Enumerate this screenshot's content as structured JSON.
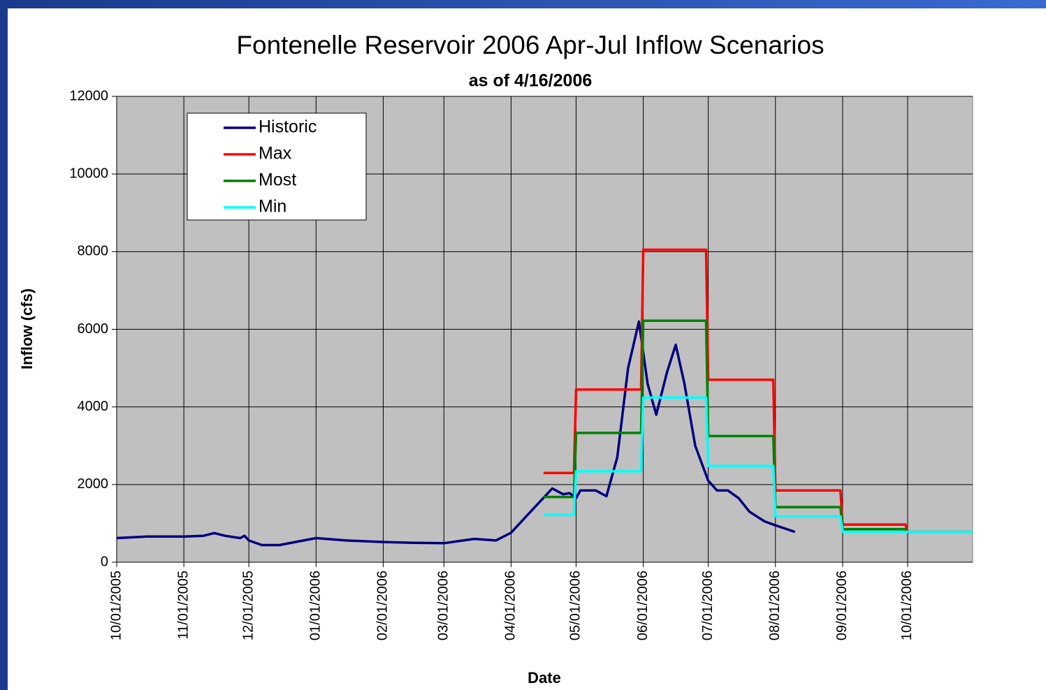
{
  "chart_data": {
    "type": "line",
    "title": "Fontenelle Reservoir 2006 Apr-Jul Inflow Scenarios",
    "subtitle": "as of 4/16/2006",
    "x_label": "Date",
    "y_label": "Inflow (cfs)",
    "xlim": [
      "10/01/2005",
      "10/31/2006"
    ],
    "xticks": [
      "10/01/2005",
      "11/01/2005",
      "12/01/2005",
      "01/01/2006",
      "02/01/2006",
      "03/01/2006",
      "04/01/2006",
      "05/01/2006",
      "06/01/2006",
      "07/01/2006",
      "08/01/2006",
      "09/01/2006",
      "10/01/2006"
    ],
    "ylim": [
      0,
      12000
    ],
    "yticks": [
      0,
      2000,
      4000,
      6000,
      8000,
      10000,
      12000
    ],
    "grid": true,
    "legend": "upper left",
    "series": [
      {
        "name": "Historic",
        "color": "#000080",
        "x": [
          "10/01/2005",
          "10/15/2005",
          "11/01/2005",
          "11/10/2005",
          "11/15/2005",
          "11/20/2005",
          "11/27/2005",
          "11/29/2005",
          "12/01/2005",
          "12/07/2005",
          "12/15/2005",
          "01/01/2006",
          "01/15/2006",
          "02/01/2006",
          "02/15/2006",
          "03/01/2006",
          "03/15/2006",
          "03/25/2006",
          "04/01/2006",
          "04/10/2006",
          "04/20/2006",
          "04/25/2006",
          "04/28/2006",
          "05/01/2006",
          "05/03/2006",
          "05/10/2006",
          "05/15/2006",
          "05/20/2006",
          "05/25/2006",
          "05/30/2006",
          "06/03/2006",
          "06/07/2006",
          "06/12/2006",
          "06/16/2006",
          "06/20/2006",
          "06/25/2006",
          "07/01/2006",
          "07/05/2006",
          "07/10/2006",
          "07/15/2006",
          "07/20/2006",
          "07/27/2006",
          "08/01/2006",
          "08/10/2006"
        ],
        "values": [
          620,
          660,
          660,
          680,
          750,
          680,
          620,
          680,
          560,
          440,
          440,
          620,
          560,
          520,
          500,
          490,
          600,
          560,
          760,
          1300,
          1900,
          1750,
          1780,
          1650,
          1850,
          1850,
          1700,
          2700,
          5000,
          6200,
          4600,
          3800,
          4900,
          5600,
          4600,
          3000,
          2100,
          1850,
          1850,
          1650,
          1300,
          1050,
          950,
          780
        ]
      },
      {
        "name": "Max",
        "color": "#ff0000",
        "x": [
          "04/16/2006",
          "04/30/2006",
          "05/01/2006",
          "05/31/2006",
          "06/01/2006",
          "06/30/2006",
          "07/01/2006",
          "07/31/2006",
          "08/01/2006",
          "08/31/2006",
          "09/01/2006",
          "09/30/2006",
          "10/01/2006",
          "10/31/2006"
        ],
        "values": [
          2300,
          2300,
          4450,
          4450,
          8050,
          8050,
          4700,
          4700,
          1850,
          1850,
          970,
          970,
          780,
          780
        ]
      },
      {
        "name": "Most",
        "color": "#008000",
        "x": [
          "04/16/2006",
          "04/30/2006",
          "05/01/2006",
          "05/31/2006",
          "06/01/2006",
          "06/30/2006",
          "07/01/2006",
          "07/31/2006",
          "08/01/2006",
          "08/31/2006",
          "09/01/2006",
          "09/30/2006",
          "10/01/2006",
          "10/31/2006"
        ],
        "values": [
          1680,
          1680,
          3330,
          3330,
          6220,
          6220,
          3250,
          3250,
          1420,
          1420,
          850,
          850,
          780,
          780
        ]
      },
      {
        "name": "Min",
        "color": "#00ffff",
        "x": [
          "04/16/2006",
          "04/30/2006",
          "05/01/2006",
          "05/31/2006",
          "06/01/2006",
          "06/30/2006",
          "07/01/2006",
          "07/31/2006",
          "08/01/2006",
          "08/31/2006",
          "09/01/2006",
          "09/30/2006",
          "10/01/2006",
          "10/31/2006"
        ],
        "values": [
          1220,
          1220,
          2340,
          2340,
          4240,
          4240,
          2480,
          2480,
          1180,
          1180,
          780,
          780,
          780,
          780
        ]
      }
    ]
  }
}
